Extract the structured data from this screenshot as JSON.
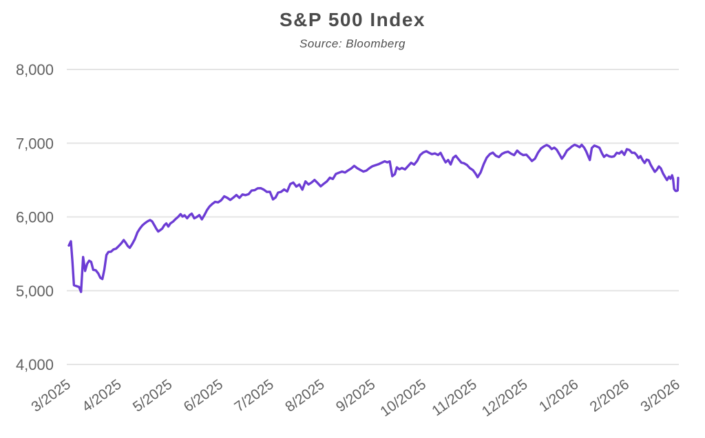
{
  "header": {
    "title": "S&P 500 Index",
    "subtitle": "Source: Bloomberg"
  },
  "colors": {
    "background": "#ffffff",
    "line": "#6c3cd4",
    "grid": "#e4e4e4",
    "title_text": "#4b4b4b",
    "tick_text": "#606060"
  },
  "chart_data": {
    "type": "line",
    "title": "S&P 500 Index",
    "subtitle": "Source: Bloomberg",
    "legend": "none",
    "grid": "horizontal-only",
    "x_axis": {
      "unit": "months since 3/2025 (0 = 3/2025, 12 = 3/2026)",
      "range": [
        0,
        12
      ],
      "tick_labels": [
        "3/2025",
        "4/2025",
        "5/2025",
        "6/2025",
        "7/2025",
        "8/2025",
        "9/2025",
        "10/2025",
        "11/2025",
        "12/2025",
        "1/2026",
        "2/2026",
        "3/2026"
      ],
      "label_rotation_deg": -36
    },
    "y_axis": {
      "range": [
        4000,
        8000
      ],
      "ticks": [
        {
          "value": 4000,
          "label": "4,000"
        },
        {
          "value": 5000,
          "label": "5,000"
        },
        {
          "value": 6000,
          "label": "6,000"
        },
        {
          "value": 7000,
          "label": "7,000"
        },
        {
          "value": 8000,
          "label": "8,000"
        }
      ]
    },
    "series": [
      {
        "name": "S&P 500 Index",
        "color": "#6c3cd4",
        "points": [
          [
            0.0,
            5612
          ],
          [
            0.04,
            5670
          ],
          [
            0.07,
            5396
          ],
          [
            0.1,
            5074
          ],
          [
            0.15,
            5062
          ],
          [
            0.2,
            5050
          ],
          [
            0.24,
            4983
          ],
          [
            0.28,
            5456
          ],
          [
            0.32,
            5268
          ],
          [
            0.36,
            5363
          ],
          [
            0.4,
            5406
          ],
          [
            0.44,
            5390
          ],
          [
            0.48,
            5283
          ],
          [
            0.53,
            5276
          ],
          [
            0.58,
            5233
          ],
          [
            0.62,
            5176
          ],
          [
            0.66,
            5158
          ],
          [
            0.7,
            5288
          ],
          [
            0.74,
            5484
          ],
          [
            0.78,
            5525
          ],
          [
            0.83,
            5528
          ],
          [
            0.88,
            5560
          ],
          [
            0.93,
            5570
          ],
          [
            0.98,
            5604
          ],
          [
            1.03,
            5640
          ],
          [
            1.08,
            5687
          ],
          [
            1.12,
            5650
          ],
          [
            1.16,
            5606
          ],
          [
            1.2,
            5581
          ],
          [
            1.25,
            5635
          ],
          [
            1.3,
            5700
          ],
          [
            1.35,
            5790
          ],
          [
            1.4,
            5844
          ],
          [
            1.45,
            5886
          ],
          [
            1.5,
            5916
          ],
          [
            1.55,
            5940
          ],
          [
            1.6,
            5958
          ],
          [
            1.64,
            5940
          ],
          [
            1.68,
            5893
          ],
          [
            1.72,
            5842
          ],
          [
            1.76,
            5802
          ],
          [
            1.8,
            5822
          ],
          [
            1.84,
            5842
          ],
          [
            1.88,
            5888
          ],
          [
            1.92,
            5912
          ],
          [
            1.96,
            5870
          ],
          [
            2.0,
            5912
          ],
          [
            2.05,
            5936
          ],
          [
            2.1,
            5970
          ],
          [
            2.15,
            6000
          ],
          [
            2.2,
            6038
          ],
          [
            2.24,
            6005
          ],
          [
            2.28,
            6022
          ],
          [
            2.33,
            5982
          ],
          [
            2.38,
            6025
          ],
          [
            2.42,
            6045
          ],
          [
            2.47,
            5981
          ],
          [
            2.52,
            6000
          ],
          [
            2.57,
            6025
          ],
          [
            2.62,
            5967
          ],
          [
            2.67,
            6025
          ],
          [
            2.72,
            6092
          ],
          [
            2.77,
            6141
          ],
          [
            2.82,
            6173
          ],
          [
            2.88,
            6205
          ],
          [
            2.94,
            6198
          ],
          [
            3.0,
            6227
          ],
          [
            3.06,
            6280
          ],
          [
            3.12,
            6259
          ],
          [
            3.18,
            6230
          ],
          [
            3.24,
            6263
          ],
          [
            3.3,
            6297
          ],
          [
            3.36,
            6259
          ],
          [
            3.42,
            6305
          ],
          [
            3.48,
            6296
          ],
          [
            3.54,
            6309
          ],
          [
            3.6,
            6358
          ],
          [
            3.66,
            6363
          ],
          [
            3.72,
            6389
          ],
          [
            3.78,
            6390
          ],
          [
            3.84,
            6370
          ],
          [
            3.9,
            6339
          ],
          [
            3.96,
            6340
          ],
          [
            4.02,
            6238
          ],
          [
            4.07,
            6263
          ],
          [
            4.12,
            6330
          ],
          [
            4.18,
            6340
          ],
          [
            4.24,
            6373
          ],
          [
            4.3,
            6345
          ],
          [
            4.36,
            6446
          ],
          [
            4.42,
            6466
          ],
          [
            4.48,
            6412
          ],
          [
            4.54,
            6440
          ],
          [
            4.6,
            6370
          ],
          [
            4.66,
            6482
          ],
          [
            4.72,
            6440
          ],
          [
            4.78,
            6466
          ],
          [
            4.84,
            6502
          ],
          [
            4.9,
            6460
          ],
          [
            4.96,
            6415
          ],
          [
            5.02,
            6449
          ],
          [
            5.08,
            6481
          ],
          [
            5.14,
            6532
          ],
          [
            5.2,
            6515
          ],
          [
            5.26,
            6584
          ],
          [
            5.32,
            6600
          ],
          [
            5.38,
            6615
          ],
          [
            5.44,
            6602
          ],
          [
            5.5,
            6631
          ],
          [
            5.56,
            6656
          ],
          [
            5.62,
            6693
          ],
          [
            5.68,
            6661
          ],
          [
            5.74,
            6638
          ],
          [
            5.8,
            6615
          ],
          [
            5.86,
            6628
          ],
          [
            5.92,
            6661
          ],
          [
            5.98,
            6688
          ],
          [
            6.04,
            6702
          ],
          [
            6.1,
            6715
          ],
          [
            6.16,
            6735
          ],
          [
            6.22,
            6754
          ],
          [
            6.27,
            6740
          ],
          [
            6.32,
            6753
          ],
          [
            6.37,
            6553
          ],
          [
            6.42,
            6580
          ],
          [
            6.46,
            6672
          ],
          [
            6.51,
            6645
          ],
          [
            6.56,
            6664
          ],
          [
            6.62,
            6644
          ],
          [
            6.68,
            6689
          ],
          [
            6.74,
            6735
          ],
          [
            6.8,
            6710
          ],
          [
            6.86,
            6760
          ],
          [
            6.92,
            6840
          ],
          [
            6.98,
            6875
          ],
          [
            7.04,
            6891
          ],
          [
            7.1,
            6868
          ],
          [
            7.15,
            6851
          ],
          [
            7.21,
            6862
          ],
          [
            7.27,
            6840
          ],
          [
            7.32,
            6869
          ],
          [
            7.37,
            6803
          ],
          [
            7.42,
            6740
          ],
          [
            7.47,
            6772
          ],
          [
            7.52,
            6712
          ],
          [
            7.57,
            6803
          ],
          [
            7.62,
            6830
          ],
          [
            7.67,
            6786
          ],
          [
            7.73,
            6737
          ],
          [
            7.78,
            6728
          ],
          [
            7.84,
            6705
          ],
          [
            7.9,
            6661
          ],
          [
            7.96,
            6633
          ],
          [
            8.01,
            6587
          ],
          [
            8.05,
            6539
          ],
          [
            8.11,
            6603
          ],
          [
            8.17,
            6714
          ],
          [
            8.23,
            6805
          ],
          [
            8.29,
            6851
          ],
          [
            8.35,
            6872
          ],
          [
            8.41,
            6830
          ],
          [
            8.47,
            6812
          ],
          [
            8.53,
            6855
          ],
          [
            8.59,
            6875
          ],
          [
            8.65,
            6885
          ],
          [
            8.71,
            6858
          ],
          [
            8.77,
            6838
          ],
          [
            8.83,
            6900
          ],
          [
            8.89,
            6862
          ],
          [
            8.95,
            6838
          ],
          [
            9.01,
            6845
          ],
          [
            9.07,
            6800
          ],
          [
            9.12,
            6758
          ],
          [
            9.18,
            6790
          ],
          [
            9.24,
            6872
          ],
          [
            9.3,
            6930
          ],
          [
            9.36,
            6958
          ],
          [
            9.41,
            6975
          ],
          [
            9.46,
            6958
          ],
          [
            9.51,
            6920
          ],
          [
            9.56,
            6940
          ],
          [
            9.61,
            6910
          ],
          [
            9.66,
            6852
          ],
          [
            9.71,
            6790
          ],
          [
            9.76,
            6838
          ],
          [
            9.81,
            6900
          ],
          [
            9.86,
            6928
          ],
          [
            9.91,
            6958
          ],
          [
            9.96,
            6978
          ],
          [
            10.01,
            6965
          ],
          [
            10.06,
            6945
          ],
          [
            10.1,
            6978
          ],
          [
            10.15,
            6938
          ],
          [
            10.19,
            6888
          ],
          [
            10.23,
            6820
          ],
          [
            10.26,
            6772
          ],
          [
            10.3,
            6935
          ],
          [
            10.35,
            6968
          ],
          [
            10.4,
            6955
          ],
          [
            10.45,
            6938
          ],
          [
            10.5,
            6862
          ],
          [
            10.54,
            6815
          ],
          [
            10.59,
            6842
          ],
          [
            10.64,
            6822
          ],
          [
            10.69,
            6815
          ],
          [
            10.74,
            6822
          ],
          [
            10.79,
            6870
          ],
          [
            10.84,
            6860
          ],
          [
            10.89,
            6890
          ],
          [
            10.94,
            6842
          ],
          [
            10.99,
            6918
          ],
          [
            11.04,
            6908
          ],
          [
            11.09,
            6870
          ],
          [
            11.14,
            6870
          ],
          [
            11.18,
            6842
          ],
          [
            11.22,
            6798
          ],
          [
            11.26,
            6825
          ],
          [
            11.3,
            6770
          ],
          [
            11.34,
            6732
          ],
          [
            11.38,
            6778
          ],
          [
            11.42,
            6768
          ],
          [
            11.46,
            6705
          ],
          [
            11.5,
            6658
          ],
          [
            11.54,
            6612
          ],
          [
            11.58,
            6640
          ],
          [
            11.62,
            6685
          ],
          [
            11.66,
            6658
          ],
          [
            11.7,
            6592
          ],
          [
            11.74,
            6545
          ],
          [
            11.78,
            6500
          ],
          [
            11.82,
            6545
          ],
          [
            11.85,
            6518
          ],
          [
            11.88,
            6565
          ],
          [
            11.9,
            6518
          ],
          [
            11.92,
            6380
          ],
          [
            11.95,
            6352
          ],
          [
            11.97,
            6352
          ],
          [
            11.99,
            6360
          ],
          [
            12.0,
            6530
          ]
        ]
      }
    ]
  }
}
